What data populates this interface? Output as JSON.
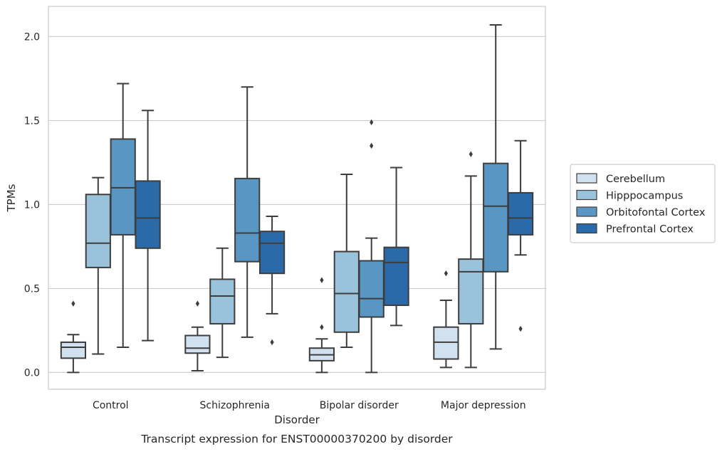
{
  "caption": "Transcript expression for ENST00000370200 by disorder",
  "chart_data": {
    "type": "box",
    "title": "",
    "xlabel": "Disorder",
    "ylabel": "TPMs",
    "categories": [
      "Control",
      "Schizophrenia",
      "Bipolar disorder",
      "Major depression"
    ],
    "ylim": [
      -0.1,
      2.18
    ],
    "yticks": [
      0.0,
      0.5,
      1.0,
      1.5,
      2.0
    ],
    "ytick_labels": [
      "0.0",
      "0.5",
      "1.0",
      "1.5",
      "2.0"
    ],
    "grid": "horizontal",
    "legend_position": "right",
    "series": [
      {
        "name": "Cerebellum",
        "color": "#d1e1f0",
        "boxes": [
          {
            "whislo": 0.0,
            "q1": 0.085,
            "median": 0.15,
            "q3": 0.18,
            "whishi": 0.225,
            "fliers": [
              0.41
            ]
          },
          {
            "whislo": 0.01,
            "q1": 0.115,
            "median": 0.145,
            "q3": 0.22,
            "whishi": 0.27,
            "fliers": [
              0.41
            ]
          },
          {
            "whislo": 0.0,
            "q1": 0.07,
            "median": 0.105,
            "q3": 0.145,
            "whishi": 0.2,
            "fliers": [
              0.27,
              0.55
            ]
          },
          {
            "whislo": 0.03,
            "q1": 0.08,
            "median": 0.18,
            "q3": 0.27,
            "whishi": 0.43,
            "fliers": [
              0.59
            ]
          }
        ]
      },
      {
        "name": "Hipppocampus",
        "color": "#9ac3db",
        "boxes": [
          {
            "whislo": 0.11,
            "q1": 0.625,
            "median": 0.77,
            "q3": 1.06,
            "whishi": 1.16,
            "fliers": []
          },
          {
            "whislo": 0.09,
            "q1": 0.29,
            "median": 0.455,
            "q3": 0.555,
            "whishi": 0.74,
            "fliers": []
          },
          {
            "whislo": 0.15,
            "q1": 0.24,
            "median": 0.47,
            "q3": 0.72,
            "whishi": 1.18,
            "fliers": []
          },
          {
            "whislo": 0.03,
            "q1": 0.29,
            "median": 0.6,
            "q3": 0.675,
            "whishi": 1.17,
            "fliers": [
              1.3
            ]
          }
        ]
      },
      {
        "name": "Orbitofontal Cortex",
        "color": "#5a96c4",
        "boxes": [
          {
            "whislo": 0.15,
            "q1": 0.82,
            "median": 1.1,
            "q3": 1.39,
            "whishi": 1.72,
            "fliers": []
          },
          {
            "whislo": 0.21,
            "q1": 0.66,
            "median": 0.83,
            "q3": 1.155,
            "whishi": 1.7,
            "fliers": []
          },
          {
            "whislo": 0.0,
            "q1": 0.33,
            "median": 0.44,
            "q3": 0.665,
            "whishi": 0.8,
            "fliers": [
              1.35,
              1.49
            ]
          },
          {
            "whislo": 0.14,
            "q1": 0.6,
            "median": 0.99,
            "q3": 1.245,
            "whishi": 2.07,
            "fliers": []
          }
        ]
      },
      {
        "name": "Prefrontal Cortex",
        "color": "#2a6aa8",
        "boxes": [
          {
            "whislo": 0.19,
            "q1": 0.74,
            "median": 0.92,
            "q3": 1.14,
            "whishi": 1.56,
            "fliers": []
          },
          {
            "whislo": 0.35,
            "q1": 0.59,
            "median": 0.77,
            "q3": 0.84,
            "whishi": 0.93,
            "fliers": [
              0.18
            ]
          },
          {
            "whislo": 0.28,
            "q1": 0.4,
            "median": 0.655,
            "q3": 0.745,
            "whishi": 1.22,
            "fliers": []
          },
          {
            "whislo": 0.7,
            "q1": 0.82,
            "median": 0.92,
            "q3": 1.07,
            "whishi": 1.38,
            "fliers": [
              0.26
            ]
          }
        ]
      }
    ]
  }
}
